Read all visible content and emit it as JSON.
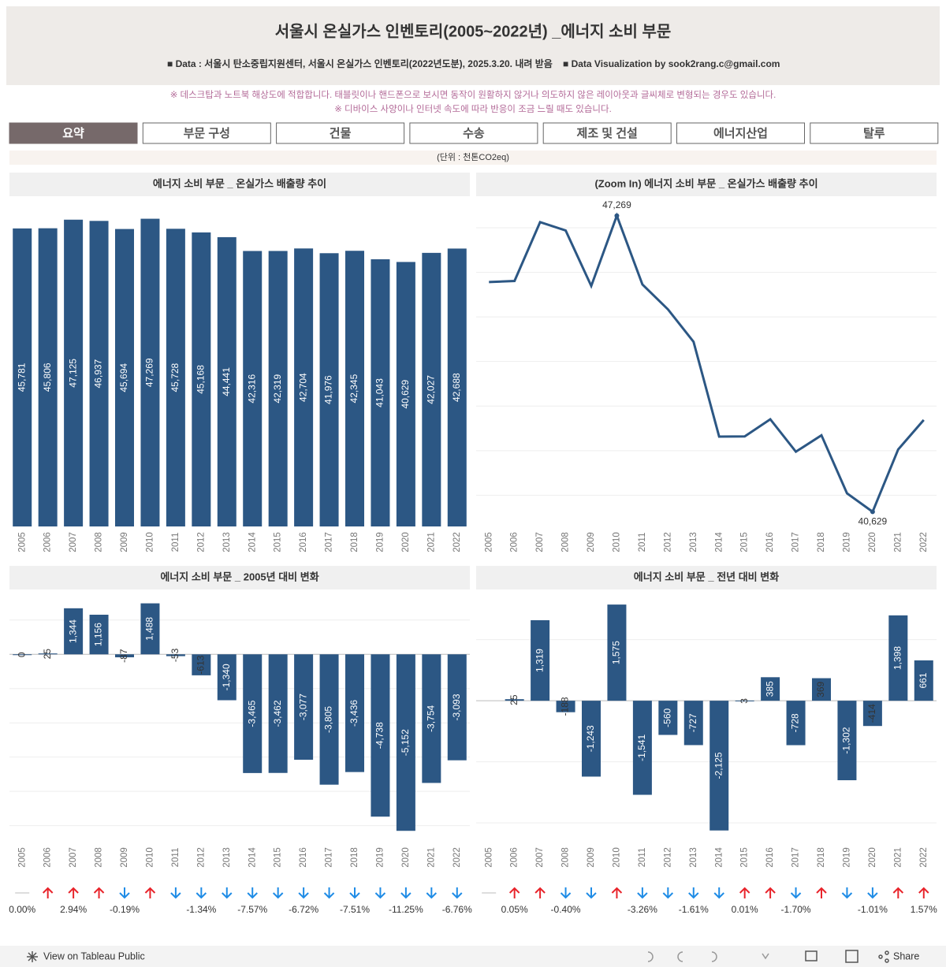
{
  "header": {
    "title": "서울시 온실가스 인벤토리(2005~2022년) _에너지 소비 부문",
    "subtitle": [
      "■ Data : 서울시 탄소중립지원센터, 서울시 온실가스 인벤토리(2022년도분), 2025.3.20. 내려 받음",
      "■ Data Visualization by sook2rang.c@gmail.com"
    ],
    "notes": [
      "※ 데스크탑과 노트북 해상도에 적합합니다. 태블릿이나 핸드폰으로 보시면 동작이 원활하지 않거나 의도하지 않은 레이아웃과 글씨체로 변형되는 경우도 있습니다.",
      "※ 디바이스 사양이나 인터넷 속도에 따라 반응이 조금 느릴 때도 있습니다."
    ]
  },
  "tabs": [
    "요약",
    "부문 구성",
    "건물",
    "수송",
    "제조 및 건설",
    "에너지산업",
    "탈루"
  ],
  "unit": "(단위 : 천톤CO2eq)",
  "chart_data": [
    {
      "type": "bar",
      "title": "에너지 소비 부문 _ 온실가스 배출량 추이",
      "color": "#2c5784",
      "categories": [
        "2005",
        "2006",
        "2007",
        "2008",
        "2009",
        "2010",
        "2011",
        "2012",
        "2013",
        "2014",
        "2015",
        "2016",
        "2017",
        "2018",
        "2019",
        "2020",
        "2021",
        "2022"
      ],
      "values": [
        45781,
        45806,
        47125,
        46937,
        45694,
        47269,
        45728,
        45168,
        44441,
        42316,
        42319,
        42704,
        41976,
        42345,
        41043,
        40629,
        42027,
        42688
      ],
      "value_labels": [
        "45,781",
        "45,806",
        "47,125",
        "46,937",
        "45,694",
        "47,269",
        "45,728",
        "45,168",
        "44,441",
        "42,316",
        "42,319",
        "42,704",
        "41,976",
        "42,345",
        "41,043",
        "40,629",
        "42,027",
        "42,688"
      ],
      "ylim": [
        0,
        50000
      ]
    },
    {
      "type": "line",
      "title": "(Zoom In) 에너지 소비 부문 _ 온실가스 배출량 추이",
      "color": "#2c5784",
      "categories": [
        "2005",
        "2006",
        "2007",
        "2008",
        "2009",
        "2010",
        "2011",
        "2012",
        "2013",
        "2014",
        "2015",
        "2016",
        "2017",
        "2018",
        "2019",
        "2020",
        "2021",
        "2022"
      ],
      "values": [
        45781,
        45806,
        47125,
        46937,
        45694,
        47269,
        45728,
        45168,
        44441,
        42316,
        42319,
        42704,
        41976,
        42345,
        41043,
        40629,
        42027,
        42688
      ],
      "value_labels": [
        null,
        null,
        null,
        null,
        null,
        "47,269",
        null,
        null,
        null,
        null,
        null,
        null,
        null,
        null,
        null,
        "40,629",
        null,
        null
      ],
      "ylim": [
        40300,
        47600
      ],
      "grid_values": [
        41000,
        42000,
        43000,
        44000,
        45000,
        46000,
        47000
      ]
    },
    {
      "type": "bar",
      "title": "에너지 소비 부문 _ 2005년 대비 변화",
      "color": "#2c5784",
      "categories": [
        "2005",
        "2006",
        "2007",
        "2008",
        "2009",
        "2010",
        "2011",
        "2012",
        "2013",
        "2014",
        "2015",
        "2016",
        "2017",
        "2018",
        "2019",
        "2020",
        "2021",
        "2022"
      ],
      "values": [
        0,
        25,
        1344,
        1156,
        -87,
        1488,
        -53,
        -613,
        -1340,
        -3465,
        -3462,
        -3077,
        -3805,
        -3436,
        -4738,
        -5152,
        -3754,
        -3093
      ],
      "value_labels": [
        "0",
        "25",
        "1,344",
        "1,156",
        "-87",
        "1,488",
        "-53",
        "-613",
        "-1,340",
        "-3,465",
        "-3,462",
        "-3,077",
        "-3,805",
        "-3,436",
        "-4,738",
        "-5,152",
        "-3,754",
        "-3,093"
      ],
      "percent_change": {
        "values": [
          0,
          null,
          2.94,
          null,
          -0.19,
          null,
          null,
          -1.34,
          null,
          -7.57,
          null,
          -6.72,
          null,
          -7.51,
          null,
          -11.25,
          null,
          -6.76
        ],
        "value_labels": [
          "0.00%",
          null,
          "2.94%",
          null,
          "-0.19%",
          null,
          null,
          "-1.34%",
          null,
          "-7.57%",
          null,
          "-6.72%",
          null,
          "-7.51%",
          null,
          "-11.25%",
          null,
          "-6.76%"
        ]
      },
      "ylim": [
        -5400,
        1800
      ],
      "grid_values": [
        -5000,
        -4000,
        -3000,
        -2000,
        -1000,
        0,
        1000
      ]
    },
    {
      "type": "bar",
      "title": "에너지 소비 부문 _ 전년 대비 변화",
      "color": "#2c5784",
      "categories": [
        "2005",
        "2006",
        "2007",
        "2008",
        "2009",
        "2010",
        "2011",
        "2012",
        "2013",
        "2014",
        "2015",
        "2016",
        "2017",
        "2018",
        "2019",
        "2020",
        "2021",
        "2022"
      ],
      "values": [
        null,
        25,
        1319,
        -188,
        -1243,
        1575,
        -1541,
        -560,
        -727,
        -2125,
        3,
        385,
        -728,
        369,
        -1302,
        -414,
        1398,
        661
      ],
      "value_labels": [
        null,
        "25",
        "1,319",
        "-188",
        "-1,243",
        "1,575",
        "-1,541",
        "-560",
        "-727",
        "-2,125",
        "3",
        "385",
        "-728",
        "369",
        "-1,302",
        "-414",
        "1,398",
        "661"
      ],
      "percent_change": {
        "values": [
          null,
          0.05,
          null,
          -0.4,
          null,
          null,
          -3.26,
          null,
          -1.61,
          null,
          0.01,
          null,
          -1.7,
          null,
          null,
          -1.01,
          null,
          1.57
        ],
        "value_labels": [
          null,
          "0.05%",
          null,
          "-0.40%",
          null,
          null,
          "-3.26%",
          null,
          "-1.61%",
          null,
          "0.01%",
          null,
          "-1.70%",
          null,
          null,
          "-1.01%",
          null,
          "1.57%"
        ]
      },
      "ylim": [
        -2270,
        1770
      ],
      "grid_values": [
        -2000,
        -1000,
        0,
        1000
      ]
    }
  ],
  "footer": {
    "link": "View on Tableau Public",
    "share": "Share"
  }
}
